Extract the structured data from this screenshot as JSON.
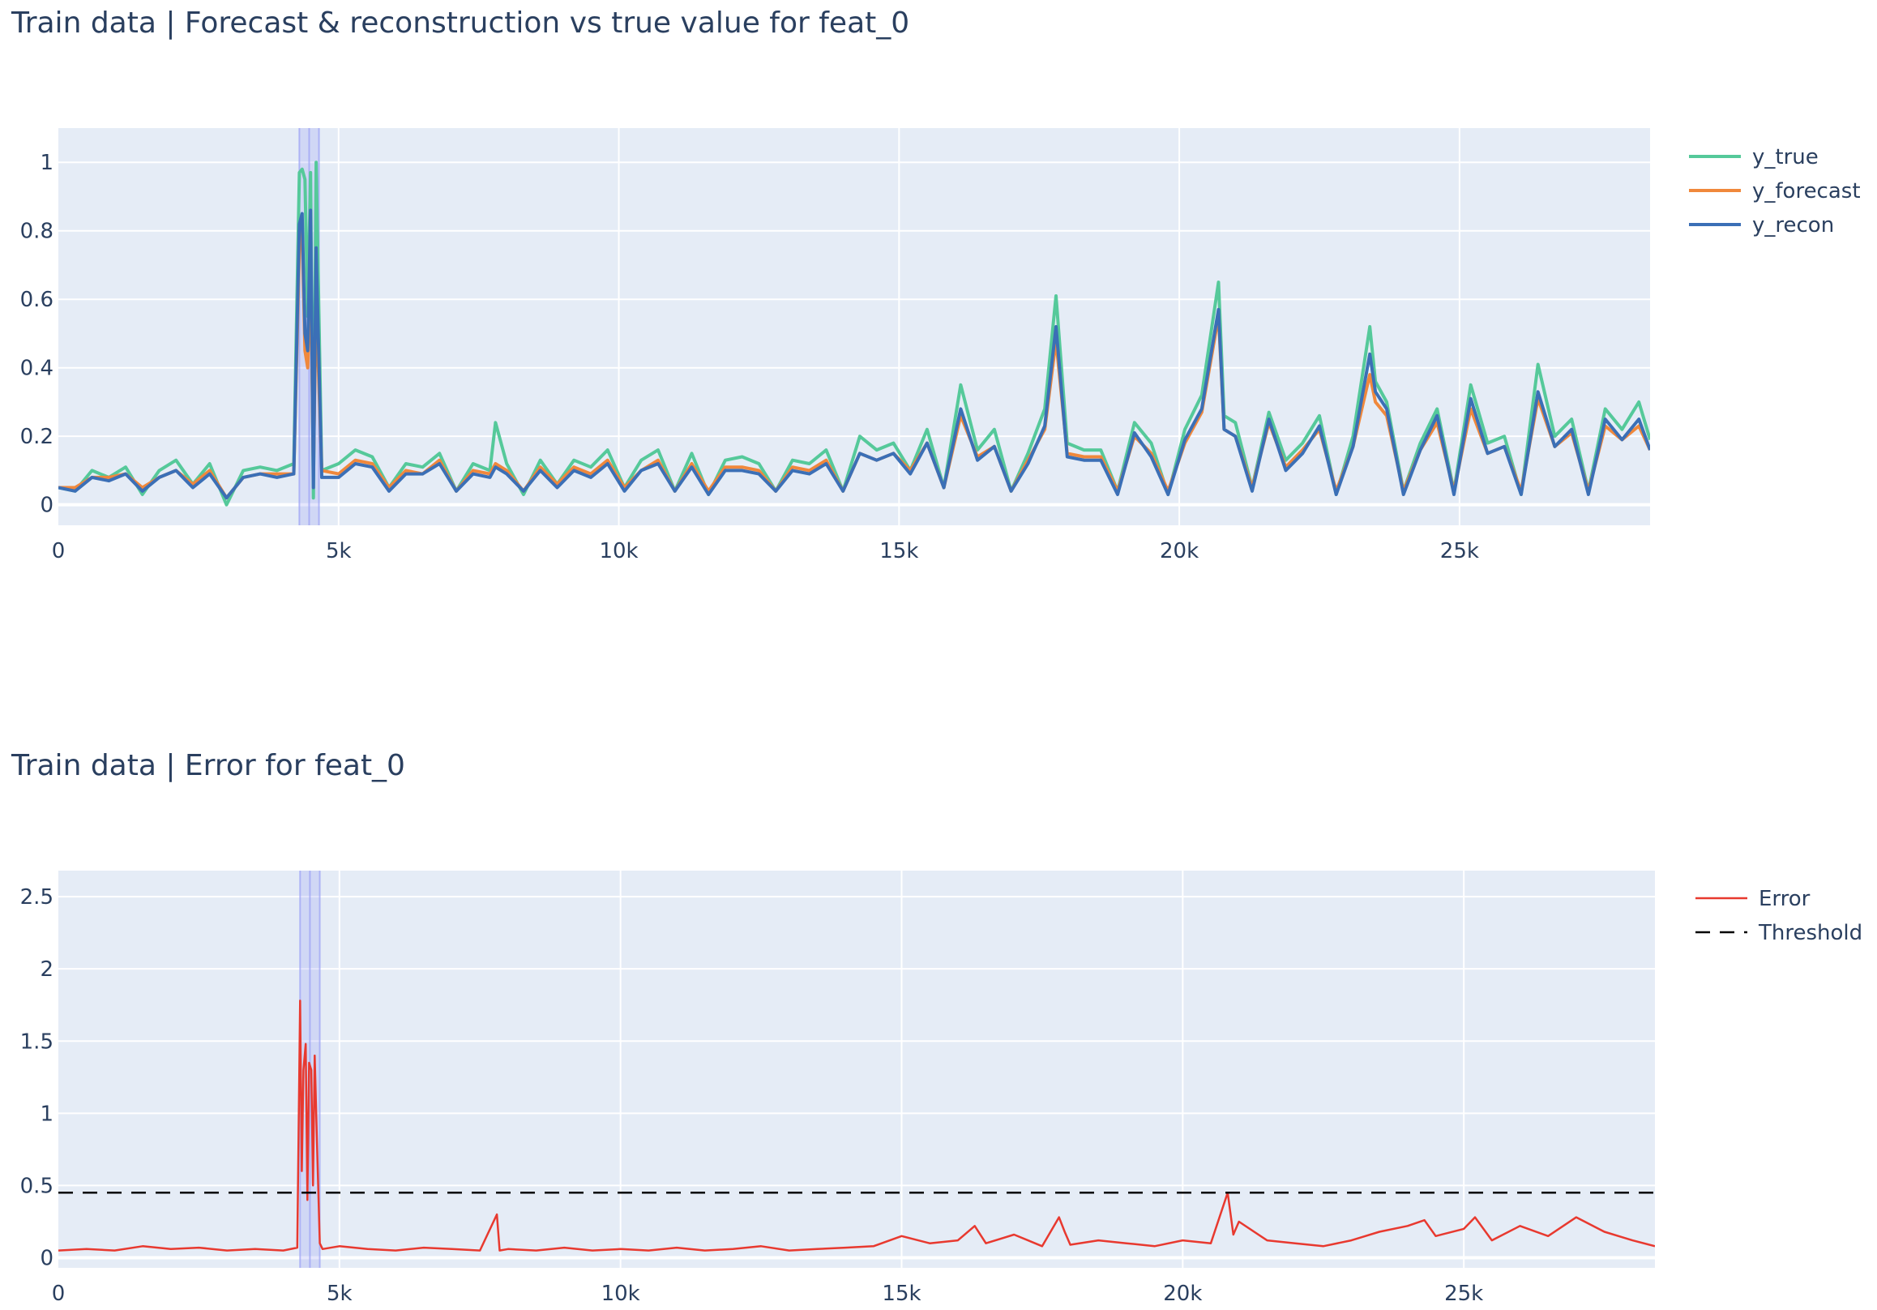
{
  "chart_data": [
    {
      "type": "line",
      "title": "Train data | Forecast & reconstruction vs true value for feat_0",
      "xlim": [
        0,
        28400
      ],
      "ylim": [
        -0.06,
        1.1
      ],
      "x_ticks": [
        0,
        5000,
        10000,
        15000,
        20000,
        25000
      ],
      "x_tick_labels": [
        "0",
        "5k",
        "10k",
        "15k",
        "20k",
        "25k"
      ],
      "y_ticks": [
        0,
        0.2,
        0.4,
        0.6,
        0.8,
        1
      ],
      "y_tick_labels": [
        "0",
        "0.2",
        "0.4",
        "0.6",
        "0.8",
        "1"
      ],
      "grid": true,
      "legend_position": "top-right",
      "highlight_x_range": [
        4300,
        4650
      ],
      "series": [
        {
          "name": "y_true",
          "color": "#55c99a",
          "x": [
            0,
            300,
            600,
            900,
            1200,
            1500,
            1800,
            2100,
            2400,
            2700,
            3000,
            3300,
            3600,
            3900,
            4200,
            4300,
            4350,
            4400,
            4450,
            4500,
            4550,
            4600,
            4700,
            5000,
            5300,
            5600,
            5900,
            6200,
            6500,
            6800,
            7100,
            7400,
            7700,
            7800,
            8000,
            8300,
            8600,
            8900,
            9200,
            9500,
            9800,
            10100,
            10400,
            10700,
            11000,
            11300,
            11600,
            11900,
            12200,
            12500,
            12800,
            13100,
            13400,
            13700,
            14000,
            14300,
            14600,
            14900,
            15200,
            15500,
            15800,
            16100,
            16400,
            16700,
            17000,
            17300,
            17600,
            17800,
            18000,
            18300,
            18600,
            18900,
            19200,
            19500,
            19800,
            20100,
            20400,
            20700,
            20800,
            21000,
            21300,
            21600,
            21900,
            22200,
            22500,
            22800,
            23100,
            23400,
            23500,
            23700,
            24000,
            24300,
            24600,
            24900,
            25200,
            25500,
            25800,
            26100,
            26400,
            26700,
            27000,
            27300,
            27600,
            27900,
            28200,
            28400
          ],
          "values": [
            0.05,
            0.04,
            0.1,
            0.08,
            0.11,
            0.03,
            0.1,
            0.13,
            0.06,
            0.12,
            0.0,
            0.1,
            0.11,
            0.1,
            0.12,
            0.97,
            0.98,
            0.95,
            0.55,
            0.97,
            0.02,
            1.0,
            0.1,
            0.12,
            0.16,
            0.14,
            0.05,
            0.12,
            0.11,
            0.15,
            0.04,
            0.12,
            0.1,
            0.24,
            0.12,
            0.03,
            0.13,
            0.06,
            0.13,
            0.11,
            0.16,
            0.05,
            0.13,
            0.16,
            0.04,
            0.15,
            0.03,
            0.13,
            0.14,
            0.12,
            0.04,
            0.13,
            0.12,
            0.16,
            0.04,
            0.2,
            0.16,
            0.18,
            0.1,
            0.22,
            0.05,
            0.35,
            0.16,
            0.22,
            0.04,
            0.15,
            0.28,
            0.61,
            0.18,
            0.16,
            0.16,
            0.04,
            0.24,
            0.18,
            0.03,
            0.22,
            0.32,
            0.65,
            0.26,
            0.24,
            0.05,
            0.27,
            0.13,
            0.18,
            0.26,
            0.03,
            0.2,
            0.52,
            0.36,
            0.3,
            0.04,
            0.18,
            0.28,
            0.04,
            0.35,
            0.18,
            0.2,
            0.03,
            0.41,
            0.2,
            0.25,
            0.04,
            0.28,
            0.22,
            0.3,
            0.19
          ]
        },
        {
          "name": "y_forecast",
          "color": "#f0883c",
          "x": [
            0,
            300,
            600,
            900,
            1200,
            1500,
            1800,
            2100,
            2400,
            2700,
            3000,
            3300,
            3600,
            3900,
            4200,
            4300,
            4350,
            4400,
            4450,
            4500,
            4550,
            4600,
            4700,
            5000,
            5300,
            5600,
            5900,
            6200,
            6500,
            6800,
            7100,
            7400,
            7700,
            7800,
            8000,
            8300,
            8600,
            8900,
            9200,
            9500,
            9800,
            10100,
            10400,
            10700,
            11000,
            11300,
            11600,
            11900,
            12200,
            12500,
            12800,
            13100,
            13400,
            13700,
            14000,
            14300,
            14600,
            14900,
            15200,
            15500,
            15800,
            16100,
            16400,
            16700,
            17000,
            17300,
            17600,
            17800,
            18000,
            18300,
            18600,
            18900,
            19200,
            19500,
            19800,
            20100,
            20400,
            20700,
            20800,
            21000,
            21300,
            21600,
            21900,
            22200,
            22500,
            22800,
            23100,
            23400,
            23500,
            23700,
            24000,
            24300,
            24600,
            24900,
            25200,
            25500,
            25800,
            26100,
            26400,
            26700,
            27000,
            27300,
            27600,
            27900,
            28200,
            28400
          ],
          "values": [
            0.05,
            0.05,
            0.08,
            0.08,
            0.09,
            0.05,
            0.08,
            0.1,
            0.06,
            0.1,
            0.02,
            0.08,
            0.09,
            0.09,
            0.09,
            0.75,
            0.8,
            0.45,
            0.4,
            0.7,
            0.1,
            0.6,
            0.1,
            0.09,
            0.13,
            0.12,
            0.05,
            0.1,
            0.09,
            0.13,
            0.04,
            0.1,
            0.09,
            0.12,
            0.1,
            0.04,
            0.11,
            0.06,
            0.11,
            0.09,
            0.13,
            0.05,
            0.1,
            0.13,
            0.04,
            0.12,
            0.04,
            0.11,
            0.11,
            0.1,
            0.04,
            0.11,
            0.1,
            0.13,
            0.04,
            0.15,
            0.13,
            0.15,
            0.1,
            0.18,
            0.05,
            0.26,
            0.14,
            0.17,
            0.04,
            0.13,
            0.22,
            0.48,
            0.15,
            0.14,
            0.14,
            0.04,
            0.2,
            0.15,
            0.04,
            0.18,
            0.27,
            0.55,
            0.22,
            0.2,
            0.05,
            0.24,
            0.11,
            0.16,
            0.22,
            0.04,
            0.17,
            0.38,
            0.3,
            0.26,
            0.04,
            0.16,
            0.24,
            0.04,
            0.28,
            0.15,
            0.17,
            0.04,
            0.31,
            0.17,
            0.21,
            0.04,
            0.23,
            0.19,
            0.23,
            0.16
          ]
        },
        {
          "name": "y_recon",
          "color": "#3b6fb6",
          "x": [
            0,
            300,
            600,
            900,
            1200,
            1500,
            1800,
            2100,
            2400,
            2700,
            3000,
            3300,
            3600,
            3900,
            4200,
            4300,
            4350,
            4400,
            4450,
            4500,
            4550,
            4600,
            4700,
            5000,
            5300,
            5600,
            5900,
            6200,
            6500,
            6800,
            7100,
            7400,
            7700,
            7800,
            8000,
            8300,
            8600,
            8900,
            9200,
            9500,
            9800,
            10100,
            10400,
            10700,
            11000,
            11300,
            11600,
            11900,
            12200,
            12500,
            12800,
            13100,
            13400,
            13700,
            14000,
            14300,
            14600,
            14900,
            15200,
            15500,
            15800,
            16100,
            16400,
            16700,
            17000,
            17300,
            17600,
            17800,
            18000,
            18300,
            18600,
            18900,
            19200,
            19500,
            19800,
            20100,
            20400,
            20700,
            20800,
            21000,
            21300,
            21600,
            21900,
            22200,
            22500,
            22800,
            23100,
            23400,
            23500,
            23700,
            24000,
            24300,
            24600,
            24900,
            25200,
            25500,
            25800,
            26100,
            26400,
            26700,
            27000,
            27300,
            27600,
            27900,
            28200,
            28400
          ],
          "values": [
            0.05,
            0.04,
            0.08,
            0.07,
            0.09,
            0.04,
            0.08,
            0.1,
            0.05,
            0.09,
            0.02,
            0.08,
            0.09,
            0.08,
            0.09,
            0.82,
            0.85,
            0.5,
            0.45,
            0.86,
            0.05,
            0.75,
            0.08,
            0.08,
            0.12,
            0.11,
            0.04,
            0.09,
            0.09,
            0.12,
            0.04,
            0.09,
            0.08,
            0.11,
            0.09,
            0.04,
            0.1,
            0.05,
            0.1,
            0.08,
            0.12,
            0.04,
            0.1,
            0.12,
            0.04,
            0.11,
            0.03,
            0.1,
            0.1,
            0.09,
            0.04,
            0.1,
            0.09,
            0.12,
            0.04,
            0.15,
            0.13,
            0.15,
            0.09,
            0.18,
            0.05,
            0.28,
            0.13,
            0.17,
            0.04,
            0.12,
            0.23,
            0.52,
            0.14,
            0.13,
            0.13,
            0.03,
            0.21,
            0.14,
            0.03,
            0.19,
            0.28,
            0.57,
            0.22,
            0.2,
            0.04,
            0.25,
            0.1,
            0.15,
            0.23,
            0.03,
            0.17,
            0.44,
            0.33,
            0.28,
            0.03,
            0.16,
            0.26,
            0.03,
            0.31,
            0.15,
            0.17,
            0.03,
            0.33,
            0.17,
            0.22,
            0.03,
            0.25,
            0.19,
            0.25,
            0.16
          ]
        }
      ]
    },
    {
      "type": "line",
      "title": "Train data | Error for feat_0",
      "xlim": [
        0,
        28400
      ],
      "ylim": [
        -0.07,
        2.68
      ],
      "x_ticks": [
        0,
        5000,
        10000,
        15000,
        20000,
        25000
      ],
      "x_tick_labels": [
        "0",
        "5k",
        "10k",
        "15k",
        "20k",
        "25k"
      ],
      "y_ticks": [
        0,
        0.5,
        1,
        1.5,
        2,
        2.5
      ],
      "y_tick_labels": [
        "0",
        "0.5",
        "1",
        "1.5",
        "2",
        "2.5"
      ],
      "grid": true,
      "legend_position": "top-right",
      "highlight_x_range": [
        4300,
        4650
      ],
      "series": [
        {
          "name": "Error",
          "color": "#e8392f",
          "x": [
            0,
            500,
            1000,
            1500,
            2000,
            2500,
            3000,
            3500,
            4000,
            4250,
            4300,
            4330,
            4360,
            4400,
            4430,
            4460,
            4500,
            4530,
            4560,
            4600,
            4650,
            4700,
            5000,
            5500,
            6000,
            6500,
            7000,
            7500,
            7800,
            7850,
            8000,
            8500,
            9000,
            9500,
            10000,
            10500,
            11000,
            11500,
            12000,
            12500,
            13000,
            13500,
            14000,
            14500,
            15000,
            15500,
            16000,
            16300,
            16500,
            17000,
            17500,
            17800,
            17900,
            18000,
            18500,
            19000,
            19500,
            20000,
            20500,
            20800,
            20900,
            21000,
            21500,
            22000,
            22500,
            23000,
            23500,
            24000,
            24300,
            24500,
            25000,
            25200,
            25500,
            26000,
            26500,
            27000,
            27500,
            28000,
            28400
          ],
          "values": [
            0.05,
            0.06,
            0.05,
            0.08,
            0.06,
            0.07,
            0.05,
            0.06,
            0.05,
            0.07,
            1.78,
            0.6,
            1.3,
            1.48,
            0.4,
            1.35,
            1.3,
            0.5,
            1.4,
            0.8,
            0.1,
            0.06,
            0.08,
            0.06,
            0.05,
            0.07,
            0.06,
            0.05,
            0.3,
            0.05,
            0.06,
            0.05,
            0.07,
            0.05,
            0.06,
            0.05,
            0.07,
            0.05,
            0.06,
            0.08,
            0.05,
            0.06,
            0.07,
            0.08,
            0.15,
            0.1,
            0.12,
            0.22,
            0.1,
            0.16,
            0.08,
            0.28,
            0.18,
            0.09,
            0.12,
            0.1,
            0.08,
            0.12,
            0.1,
            0.45,
            0.16,
            0.25,
            0.12,
            0.1,
            0.08,
            0.12,
            0.18,
            0.22,
            0.26,
            0.15,
            0.2,
            0.28,
            0.12,
            0.22,
            0.15,
            0.28,
            0.18,
            0.12,
            0.08
          ]
        },
        {
          "name": "Threshold",
          "color": "#000000",
          "x": [
            0,
            28400
          ],
          "values": [
            0.45,
            0.45
          ]
        }
      ]
    }
  ]
}
